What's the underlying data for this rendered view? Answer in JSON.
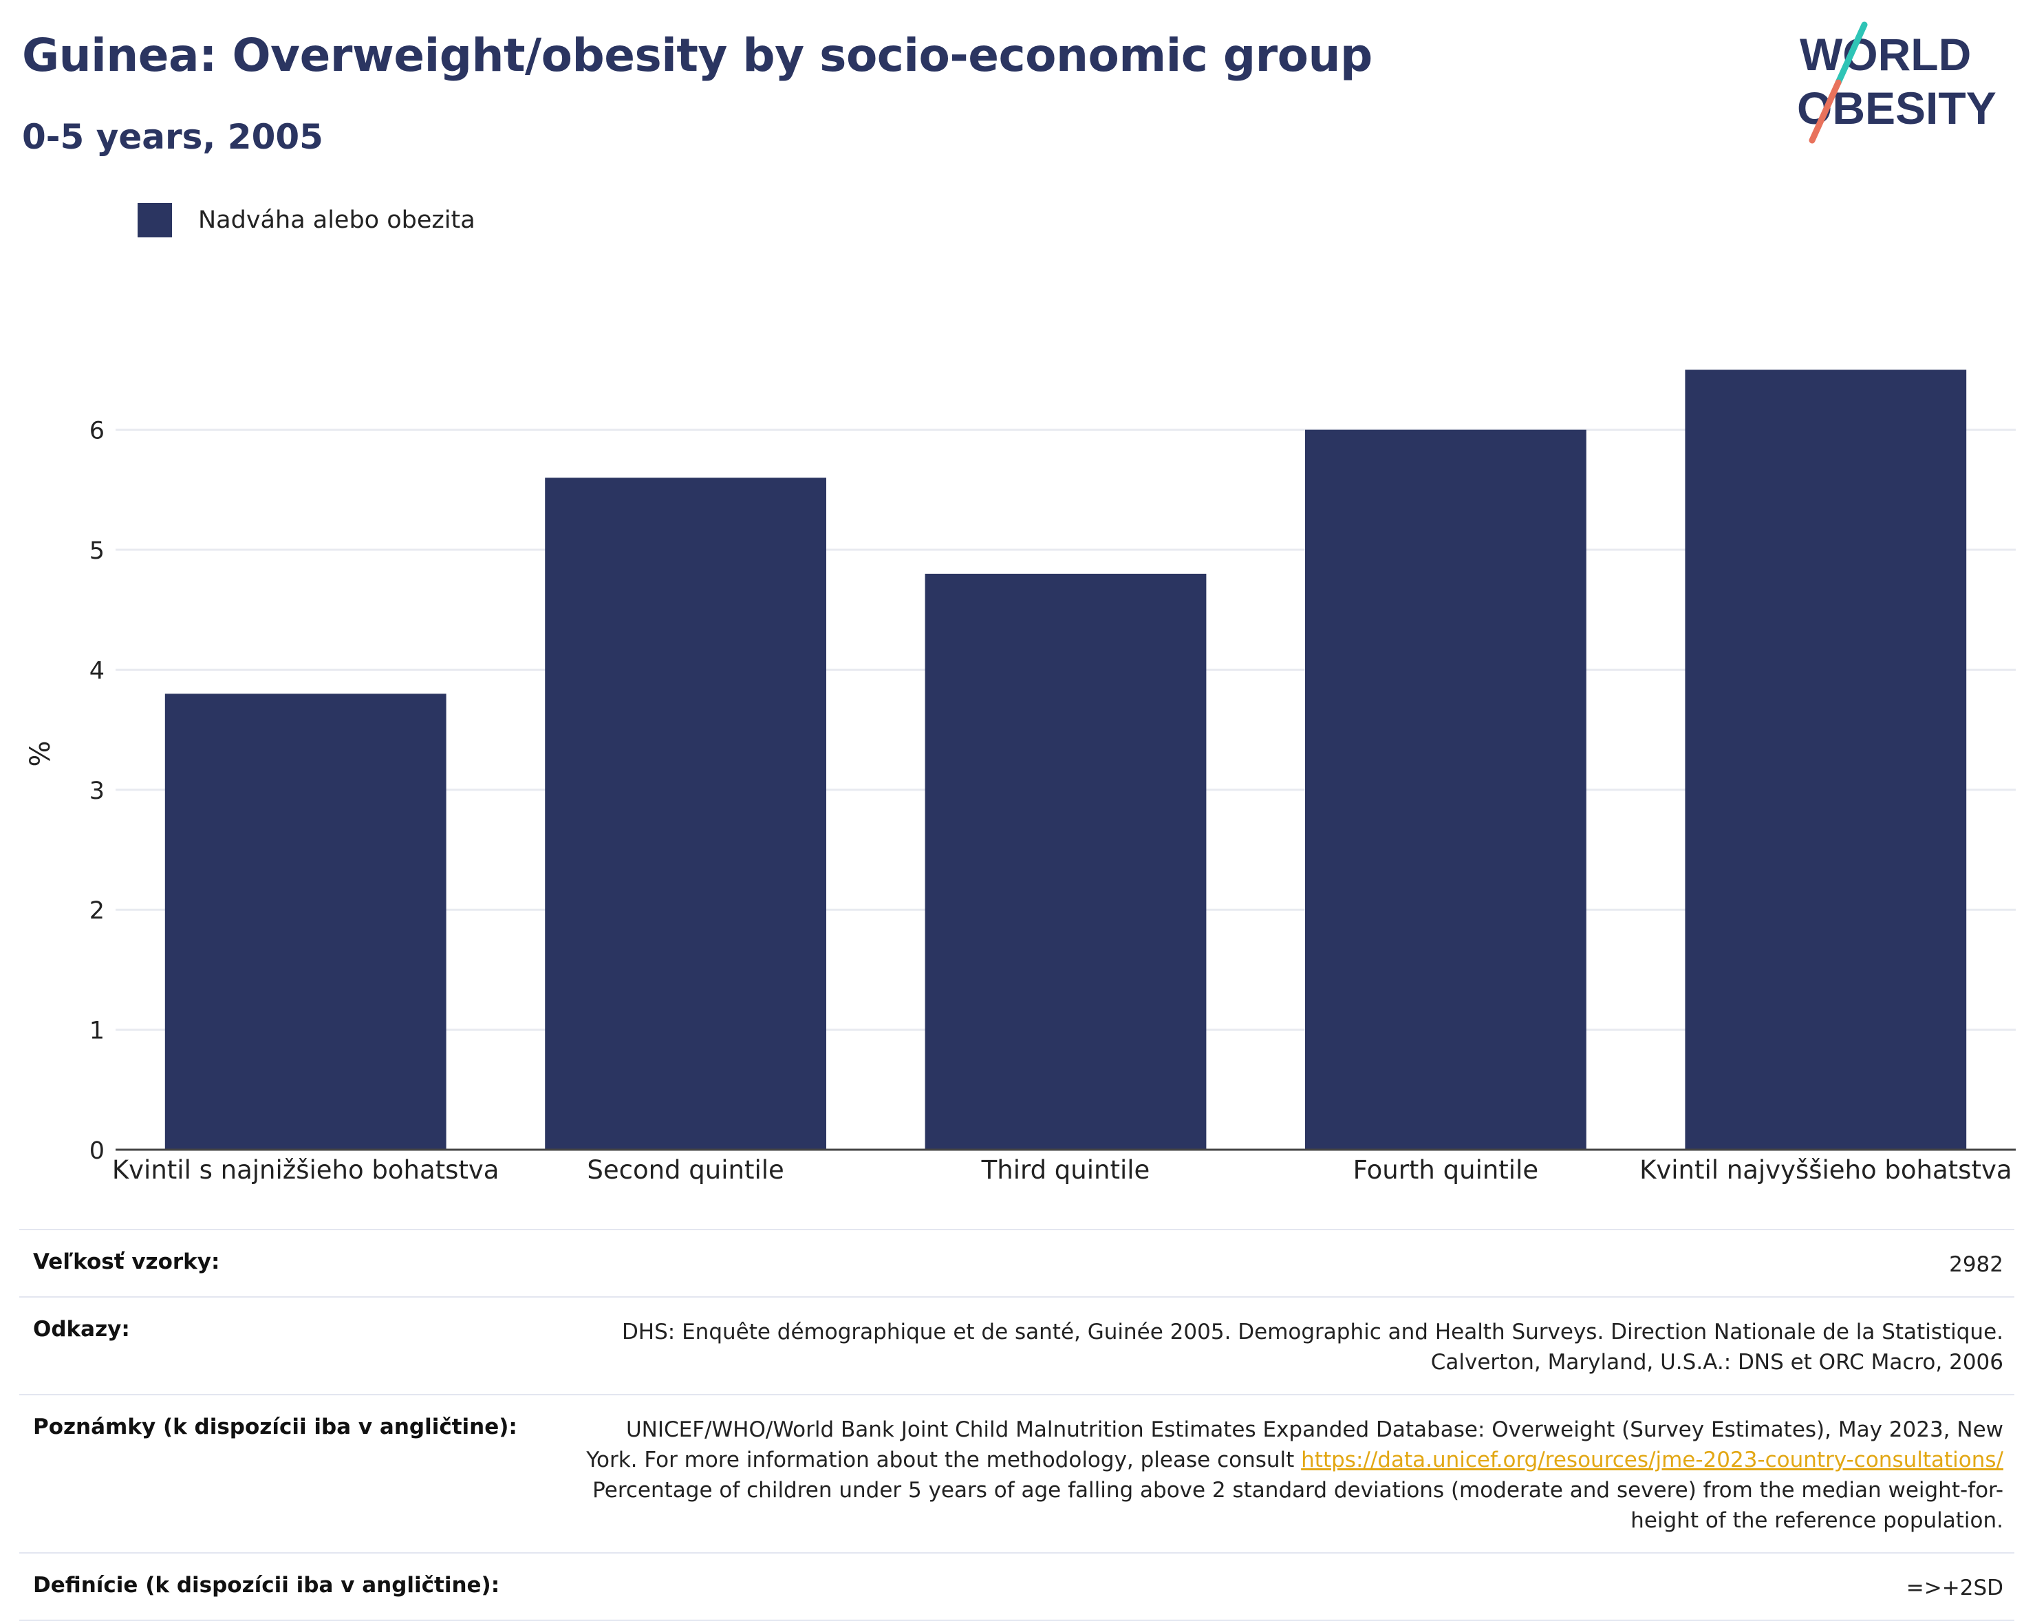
{
  "header": {
    "title": "Guinea: Overweight/obesity by socio-economic group",
    "subtitle": "0-5 years, 2005"
  },
  "logo": {
    "line1": "WORLD",
    "line2": "OBESITY",
    "colors": {
      "navy": "#2b3561",
      "teal": "#2ec4b6",
      "coral": "#e8725c"
    }
  },
  "legend": {
    "label": "Nadváha alebo obezita",
    "color": "#2b3561"
  },
  "chart_data": {
    "type": "bar",
    "categories": [
      "Kvintil s najnižšieho bohatstva",
      "Second quintile",
      "Third quintile",
      "Fourth quintile",
      "Kvintil najvyššieho bohatstva"
    ],
    "series": [
      {
        "name": "Nadváha alebo obezita",
        "values": [
          3.8,
          5.6,
          4.8,
          6.0,
          6.5
        ]
      }
    ],
    "ylabel": "%",
    "xlabel": "",
    "ylim": [
      0,
      6.6
    ],
    "yticks": [
      0,
      1,
      2,
      3,
      4,
      5,
      6
    ],
    "grid": true,
    "legend_position": "top-left",
    "bar_color": "#2b3561"
  },
  "info": {
    "sample_size": {
      "label": "Veľkosť vzorky:",
      "value": "2982"
    },
    "references": {
      "label": "Odkazy:",
      "line1": "DHS: Enquête démographique et de santé, Guinée 2005. Demographic and Health Surveys. Direction Nationale de la Statistique.",
      "line2": "Calverton, Maryland, U.S.A.: DNS et ORC Macro, 2006"
    },
    "notes": {
      "label": "Poznámky (k dispozícii iba v angličtine):",
      "line1": "UNICEF/WHO/World Bank Joint Child Malnutrition Estimates Expanded Database: Overweight (Survey Estimates), May 2023, New",
      "line2_prefix": "York. For more information about the methodology, please consult ",
      "link": "https://data.unicef.org/resources/jme-2023-country-consultations/",
      "line3": "Percentage of children under 5 years of age falling above 2 standard deviations (moderate and severe) from the median weight-for-",
      "line4": "height of the reference population."
    },
    "definitions": {
      "label": "Definície (k dispozícii iba v angličtine):",
      "value": "=>+2SD"
    }
  }
}
